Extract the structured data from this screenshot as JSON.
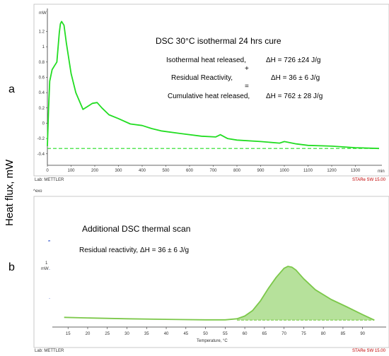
{
  "panel_labels": {
    "a": "a",
    "b": "b"
  },
  "shared_ylabel": "Heat flux, mW",
  "exo_label": "^exo",
  "chart_data": [
    {
      "type": "line",
      "panel": "a",
      "title": "DSC 30°C isothermal 24 hrs cure",
      "unit_label": "mW",
      "xunit": "min",
      "lab_label": "Lab: METTLER",
      "software_label": "STARe SW 15.00",
      "xlim": [
        0,
        1400
      ],
      "ylim": [
        -0.55,
        1.5
      ],
      "xticks": [
        0,
        100,
        200,
        300,
        400,
        500,
        600,
        700,
        800,
        900,
        1000,
        1100,
        1200,
        1300
      ],
      "yticks": [
        -0.4,
        -0.2,
        0,
        0.2,
        0.4,
        0.6,
        0.8,
        1,
        1.2
      ],
      "ytick_labels": [
        "-0.4",
        "-0.2",
        "0",
        "0.2",
        "0.4",
        "0.6",
        "0.8",
        "1",
        "1.2"
      ],
      "annotations": [
        {
          "label": "Isothermal heat released,",
          "value": "ΔH = 726 ±24 J/g"
        },
        {
          "operator": "+"
        },
        {
          "label": "Residual Reactivity,",
          "value": "ΔH = 36 ±  6  J/g"
        },
        {
          "operator": "="
        },
        {
          "label": "Cumulative heat released,",
          "value": "ΔH = 762 ±  28 J/g"
        }
      ],
      "series": [
        {
          "color": "#22dd22",
          "style": "solid",
          "x": [
            0,
            5,
            10,
            20,
            30,
            40,
            50,
            55,
            60,
            70,
            80,
            100,
            120,
            150,
            170,
            190,
            210,
            230,
            260,
            300,
            350,
            400,
            440,
            480,
            550,
            650,
            710,
            730,
            760,
            800,
            900,
            980,
            1000,
            1050,
            1100,
            1200,
            1300,
            1400
          ],
          "y": [
            -0.3,
            0.2,
            0.55,
            0.7,
            0.75,
            0.8,
            1.18,
            1.3,
            1.33,
            1.28,
            1.05,
            0.65,
            0.4,
            0.18,
            0.22,
            0.26,
            0.27,
            0.2,
            0.11,
            0.06,
            -0.01,
            -0.03,
            -0.07,
            -0.1,
            -0.13,
            -0.17,
            -0.18,
            -0.15,
            -0.2,
            -0.22,
            -0.24,
            -0.26,
            -0.24,
            -0.27,
            -0.29,
            -0.3,
            -0.32,
            -0.33
          ]
        },
        {
          "color": "#22dd22",
          "style": "dashed",
          "x": [
            0,
            1400
          ],
          "y": [
            -0.33,
            -0.33
          ]
        }
      ]
    },
    {
      "type": "area",
      "panel": "b",
      "title": "Additional DSC thermal scan",
      "annotation": "Residual reactivity, ΔH = 36 ±  6 J/g",
      "unit_label": "mW",
      "scale_label": "1",
      "xlabel": "Temperature, °C",
      "lab_label": "Lab: METTLER",
      "software_label": "STARe SW 15.00",
      "xlim": [
        11,
        96
      ],
      "ylim": [
        -0.25,
        2.9
      ],
      "xticks": [
        15,
        20,
        25,
        30,
        35,
        40,
        45,
        50,
        55,
        60,
        65,
        70,
        75,
        80,
        85,
        90
      ],
      "series": [
        {
          "color": "#7cc84a",
          "fill": "#a9dc8a",
          "style": "solid",
          "x": [
            14,
            20,
            30,
            40,
            50,
            55,
            58,
            60,
            62,
            64,
            66,
            68,
            70,
            71,
            72,
            73,
            75,
            78,
            82,
            86,
            90,
            93
          ],
          "y": [
            0.1,
            0.08,
            0.05,
            0.03,
            0.01,
            0.01,
            0.05,
            0.15,
            0.35,
            0.7,
            1.15,
            1.55,
            1.88,
            1.95,
            1.92,
            1.82,
            1.5,
            1.1,
            0.75,
            0.48,
            0.2,
            0.0
          ]
        },
        {
          "color": "#7cc84a",
          "style": "dashed",
          "x": [
            58,
            93
          ],
          "y": [
            0.0,
            0.0
          ]
        }
      ]
    }
  ]
}
